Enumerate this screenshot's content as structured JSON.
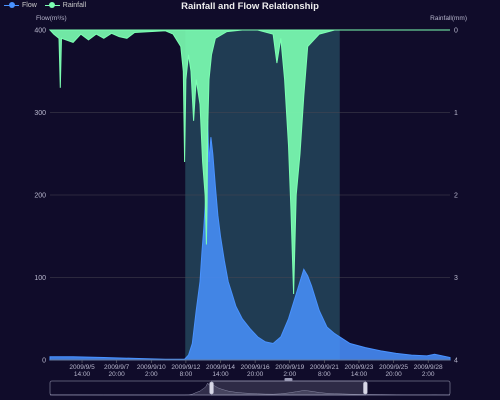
{
  "legend": [
    {
      "name": "Flow",
      "color": "#4992ff"
    },
    {
      "name": "Rainfall",
      "color": "#7cffb2"
    }
  ],
  "chart_data": {
    "type": "area",
    "title": "Rainfall and Flow Relationship",
    "y_left_label": "Flow(m³/s)",
    "y_right_label": "Rainfall(mm)",
    "y_left_range": [
      0,
      400
    ],
    "y_left_ticks": [
      "0",
      "100",
      "200",
      "300",
      "400"
    ],
    "y_right_range": [
      0,
      4
    ],
    "y_right_inverted": true,
    "y_right_ticks": [
      "0",
      "1",
      "2",
      "3",
      "4"
    ],
    "x_range": [
      "2009-09-03 12:00",
      "2009-09-29 12:00"
    ],
    "x_ticks": [
      {
        "time": "2009-09-05 14:00",
        "line1": "2009/9/5",
        "line2": "14:00"
      },
      {
        "time": "2009-09-07 20:00",
        "line1": "2009/9/7",
        "line2": "20:00"
      },
      {
        "time": "2009-09-10 02:00",
        "line1": "2009/9/10",
        "line2": "2:00"
      },
      {
        "time": "2009-09-12 08:00",
        "line1": "2009/9/12",
        "line2": "8:00"
      },
      {
        "time": "2009-09-14 14:00",
        "line1": "2009/9/14",
        "line2": "14:00"
      },
      {
        "time": "2009-09-16 20:00",
        "line1": "2009/9/16",
        "line2": "20:00"
      },
      {
        "time": "2009-09-19 02:00",
        "line1": "2009/9/19",
        "line2": "2:00"
      },
      {
        "time": "2009-09-21 08:00",
        "line1": "2009/9/21",
        "line2": "8:00"
      },
      {
        "time": "2009-09-23 14:00",
        "line1": "2009/9/23",
        "line2": "14:00"
      },
      {
        "time": "2009-09-25 20:00",
        "line1": "2009/9/25",
        "line2": "20:00"
      },
      {
        "time": "2009-09-28 02:00",
        "line1": "2009/9/28",
        "line2": "2:00"
      }
    ],
    "mark_area": [
      "2009-09-12 07:00",
      "2009-09-22 08:00"
    ],
    "series": [
      {
        "name": "Flow",
        "unit": "m³/s",
        "color": "#4992ff",
        "points": [
          [
            "2009-09-03 12:00",
            4
          ],
          [
            "2009-09-05 00:00",
            4
          ],
          [
            "2009-09-07 00:00",
            3
          ],
          [
            "2009-09-09 00:00",
            2
          ],
          [
            "2009-09-11 00:00",
            1
          ],
          [
            "2009-09-12 06:00",
            1
          ],
          [
            "2009-09-12 12:00",
            6
          ],
          [
            "2009-09-12 18:00",
            20
          ],
          [
            "2009-09-13 00:00",
            60
          ],
          [
            "2009-09-13 06:00",
            95
          ],
          [
            "2009-09-13 09:00",
            130
          ],
          [
            "2009-09-13 12:00",
            160
          ],
          [
            "2009-09-13 15:00",
            200
          ],
          [
            "2009-09-13 18:00",
            290
          ],
          [
            "2009-09-13 20:00",
            240
          ],
          [
            "2009-09-13 23:00",
            270
          ],
          [
            "2009-09-14 02:00",
            250
          ],
          [
            "2009-09-14 06:00",
            210
          ],
          [
            "2009-09-14 10:00",
            175
          ],
          [
            "2009-09-14 14:00",
            150
          ],
          [
            "2009-09-14 20:00",
            120
          ],
          [
            "2009-09-15 02:00",
            95
          ],
          [
            "2009-09-15 08:00",
            80
          ],
          [
            "2009-09-15 14:00",
            65
          ],
          [
            "2009-09-16 00:00",
            50
          ],
          [
            "2009-09-16 12:00",
            38
          ],
          [
            "2009-09-17 00:00",
            28
          ],
          [
            "2009-09-17 12:00",
            22
          ],
          [
            "2009-09-18 00:00",
            20
          ],
          [
            "2009-09-18 12:00",
            28
          ],
          [
            "2009-09-19 00:00",
            50
          ],
          [
            "2009-09-19 12:00",
            80
          ],
          [
            "2009-09-19 18:00",
            95
          ],
          [
            "2009-09-20 00:00",
            110
          ],
          [
            "2009-09-20 06:00",
            102
          ],
          [
            "2009-09-20 12:00",
            90
          ],
          [
            "2009-09-21 00:00",
            60
          ],
          [
            "2009-09-21 12:00",
            40
          ],
          [
            "2009-09-22 00:00",
            32
          ],
          [
            "2009-09-22 12:00",
            26
          ],
          [
            "2009-09-23 00:00",
            20
          ],
          [
            "2009-09-24 00:00",
            15
          ],
          [
            "2009-09-25 00:00",
            11
          ],
          [
            "2009-09-26 00:00",
            8
          ],
          [
            "2009-09-27 00:00",
            6
          ],
          [
            "2009-09-28 00:00",
            5
          ],
          [
            "2009-09-28 12:00",
            7
          ],
          [
            "2009-09-29 12:00",
            3
          ]
        ]
      },
      {
        "name": "Rainfall",
        "unit": "mm",
        "color": "#7cffb2",
        "points": [
          [
            "2009-09-03 12:00",
            0
          ],
          [
            "2009-09-03 18:00",
            0.05
          ],
          [
            "2009-09-04 02:00",
            0.1
          ],
          [
            "2009-09-04 04:00",
            0.7
          ],
          [
            "2009-09-04 06:00",
            0.1
          ],
          [
            "2009-09-05 00:00",
            0.15
          ],
          [
            "2009-09-05 12:00",
            0.05
          ],
          [
            "2009-09-06 00:00",
            0.12
          ],
          [
            "2009-09-06 12:00",
            0.05
          ],
          [
            "2009-09-07 00:00",
            0.1
          ],
          [
            "2009-09-07 12:00",
            0.04
          ],
          [
            "2009-09-08 00:00",
            0.08
          ],
          [
            "2009-09-08 12:00",
            0.1
          ],
          [
            "2009-09-09 00:00",
            0.03
          ],
          [
            "2009-09-10 00:00",
            0.02
          ],
          [
            "2009-09-11 00:00",
            0.01
          ],
          [
            "2009-09-11 12:00",
            0.05
          ],
          [
            "2009-09-12 00:00",
            0.2
          ],
          [
            "2009-09-12 04:00",
            0.5
          ],
          [
            "2009-09-12 06:00",
            1.6
          ],
          [
            "2009-09-12 08:00",
            0.6
          ],
          [
            "2009-09-12 12:00",
            0.3
          ],
          [
            "2009-09-12 16:00",
            0.5
          ],
          [
            "2009-09-12 20:00",
            1.1
          ],
          [
            "2009-09-13 00:00",
            0.6
          ],
          [
            "2009-09-13 06:00",
            0.9
          ],
          [
            "2009-09-13 10:00",
            1.6
          ],
          [
            "2009-09-13 14:00",
            2.0
          ],
          [
            "2009-09-13 16:00",
            2.6
          ],
          [
            "2009-09-13 17:00",
            2.1
          ],
          [
            "2009-09-13 18:00",
            1.2
          ],
          [
            "2009-09-13 20:00",
            0.6
          ],
          [
            "2009-09-14 00:00",
            0.3
          ],
          [
            "2009-09-14 06:00",
            0.1
          ],
          [
            "2009-09-15 00:00",
            0.02
          ],
          [
            "2009-09-16 00:00",
            0
          ],
          [
            "2009-09-17 00:00",
            0
          ],
          [
            "2009-09-18 00:00",
            0.05
          ],
          [
            "2009-09-18 06:00",
            0.4
          ],
          [
            "2009-09-18 12:00",
            0.1
          ],
          [
            "2009-09-18 18:00",
            0.6
          ],
          [
            "2009-09-19 00:00",
            1.4
          ],
          [
            "2009-09-19 04:00",
            2.2
          ],
          [
            "2009-09-19 08:00",
            3.2
          ],
          [
            "2009-09-19 12:00",
            2.0
          ],
          [
            "2009-09-19 18:00",
            1.5
          ],
          [
            "2009-09-20 00:00",
            0.8
          ],
          [
            "2009-09-20 06:00",
            0.2
          ],
          [
            "2009-09-21 00:00",
            0.05
          ],
          [
            "2009-09-22 00:00",
            0
          ],
          [
            "2009-09-29 12:00",
            0
          ]
        ]
      }
    ],
    "grid": true,
    "legend_position": "top-left",
    "data_zoom": {
      "start": "2009-09-14 00:00",
      "end": "2009-09-24 00:00"
    }
  },
  "colors": {
    "background": "#100c2a",
    "axis_text": "#b9b8ce",
    "grid": "#484753",
    "mark_area": "#23455b"
  }
}
